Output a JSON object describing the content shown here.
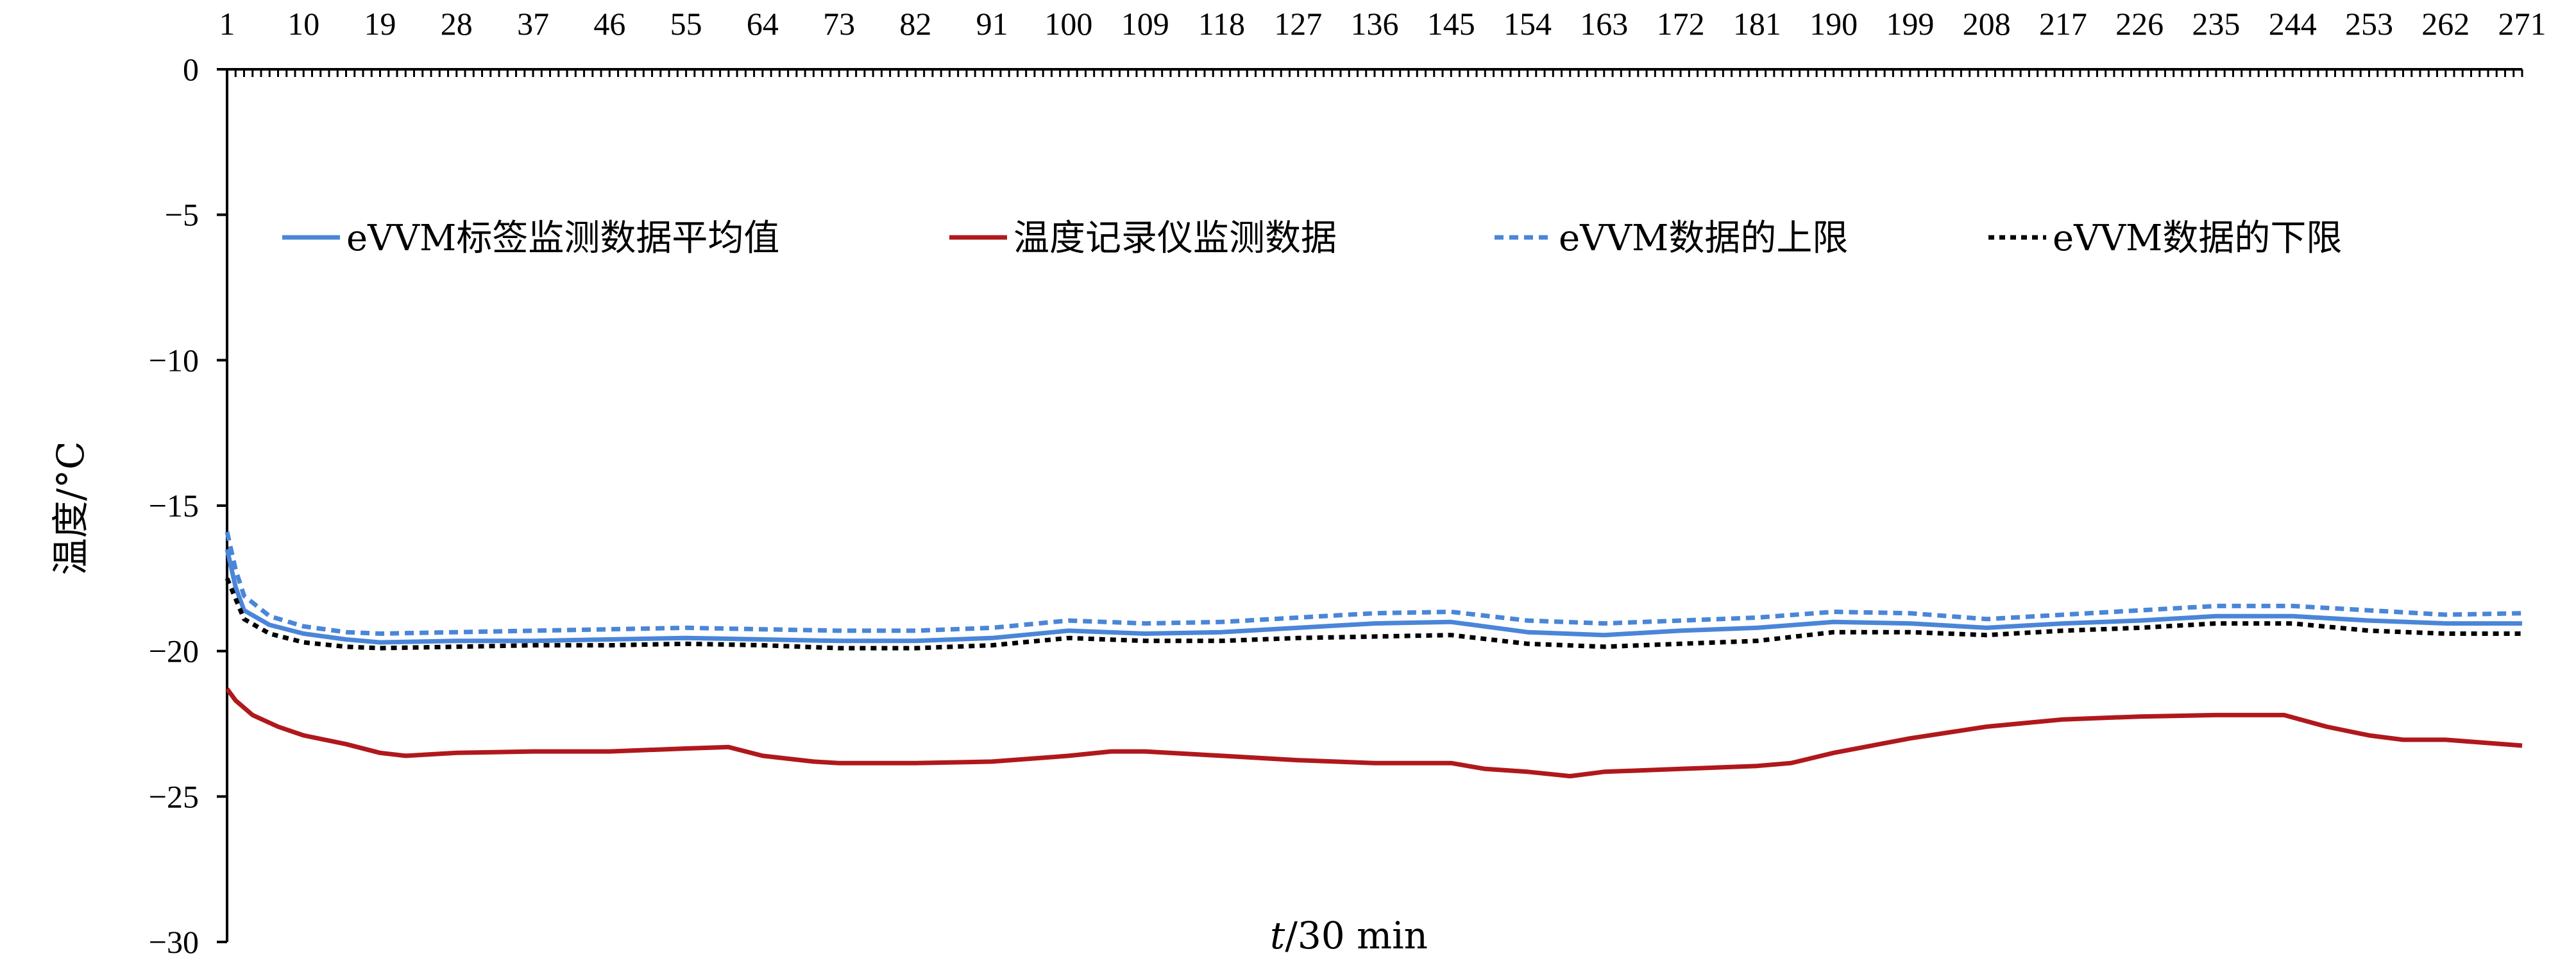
{
  "chart_data": {
    "type": "line",
    "title": "",
    "xlabel_italic": "t",
    "xlabel_rest": "/30 min",
    "ylabel": "温度/°C",
    "x_ticks": [
      1,
      10,
      19,
      28,
      37,
      46,
      55,
      64,
      73,
      82,
      91,
      100,
      109,
      118,
      127,
      136,
      145,
      154,
      163,
      172,
      181,
      190,
      199,
      208,
      217,
      226,
      235,
      244,
      253,
      262,
      271
    ],
    "y_ticks": [
      0,
      -5,
      -10,
      -15,
      -20,
      -25,
      -30
    ],
    "y_tick_labels": [
      "0",
      "−5",
      "−10",
      "−15",
      "−20",
      "−25",
      "−30"
    ],
    "xlim": [
      1,
      271
    ],
    "ylim": [
      -30,
      0
    ],
    "x_axis_position": "top",
    "grid": false,
    "legend_position": "top",
    "series": [
      {
        "name": "eVVM标签监测数据平均值",
        "color": "#4a86d8",
        "style": "solid",
        "points": [
          [
            1,
            -16.5
          ],
          [
            2,
            -17.8
          ],
          [
            3,
            -18.6
          ],
          [
            6,
            -19.1
          ],
          [
            10,
            -19.4
          ],
          [
            15,
            -19.6
          ],
          [
            19,
            -19.7
          ],
          [
            28,
            -19.65
          ],
          [
            37,
            -19.65
          ],
          [
            46,
            -19.6
          ],
          [
            55,
            -19.55
          ],
          [
            64,
            -19.6
          ],
          [
            73,
            -19.65
          ],
          [
            82,
            -19.65
          ],
          [
            91,
            -19.55
          ],
          [
            100,
            -19.3
          ],
          [
            109,
            -19.4
          ],
          [
            118,
            -19.35
          ],
          [
            127,
            -19.2
          ],
          [
            136,
            -19.05
          ],
          [
            145,
            -19.0
          ],
          [
            154,
            -19.35
          ],
          [
            163,
            -19.45
          ],
          [
            172,
            -19.3
          ],
          [
            181,
            -19.2
          ],
          [
            190,
            -19.0
          ],
          [
            199,
            -19.05
          ],
          [
            208,
            -19.2
          ],
          [
            217,
            -19.05
          ],
          [
            226,
            -18.95
          ],
          [
            235,
            -18.8
          ],
          [
            244,
            -18.8
          ],
          [
            253,
            -18.95
          ],
          [
            262,
            -19.05
          ],
          [
            271,
            -19.05
          ]
        ]
      },
      {
        "name": "温度记录仪监测数据",
        "color": "#b0181c",
        "style": "solid",
        "points": [
          [
            1,
            -21.3
          ],
          [
            2,
            -21.7
          ],
          [
            4,
            -22.2
          ],
          [
            7,
            -22.6
          ],
          [
            10,
            -22.9
          ],
          [
            15,
            -23.2
          ],
          [
            19,
            -23.5
          ],
          [
            22,
            -23.6
          ],
          [
            28,
            -23.5
          ],
          [
            37,
            -23.45
          ],
          [
            46,
            -23.45
          ],
          [
            55,
            -23.35
          ],
          [
            60,
            -23.3
          ],
          [
            64,
            -23.6
          ],
          [
            70,
            -23.8
          ],
          [
            73,
            -23.85
          ],
          [
            82,
            -23.85
          ],
          [
            91,
            -23.8
          ],
          [
            100,
            -23.6
          ],
          [
            105,
            -23.45
          ],
          [
            109,
            -23.45
          ],
          [
            118,
            -23.6
          ],
          [
            127,
            -23.75
          ],
          [
            136,
            -23.85
          ],
          [
            145,
            -23.85
          ],
          [
            149,
            -24.05
          ],
          [
            154,
            -24.15
          ],
          [
            159,
            -24.3
          ],
          [
            163,
            -24.15
          ],
          [
            172,
            -24.05
          ],
          [
            181,
            -23.95
          ],
          [
            185,
            -23.85
          ],
          [
            190,
            -23.5
          ],
          [
            199,
            -23.0
          ],
          [
            208,
            -22.6
          ],
          [
            217,
            -22.35
          ],
          [
            226,
            -22.25
          ],
          [
            235,
            -22.2
          ],
          [
            243,
            -22.2
          ],
          [
            248,
            -22.6
          ],
          [
            253,
            -22.9
          ],
          [
            257,
            -23.05
          ],
          [
            262,
            -23.05
          ],
          [
            271,
            -23.25
          ]
        ]
      },
      {
        "name": "eVVM数据的上限",
        "color": "#4a86d8",
        "style": "dashed",
        "points": [
          [
            1,
            -15.9
          ],
          [
            2,
            -17.2
          ],
          [
            3,
            -18.1
          ],
          [
            6,
            -18.8
          ],
          [
            10,
            -19.15
          ],
          [
            15,
            -19.35
          ],
          [
            19,
            -19.4
          ],
          [
            28,
            -19.35
          ],
          [
            37,
            -19.3
          ],
          [
            46,
            -19.25
          ],
          [
            55,
            -19.2
          ],
          [
            64,
            -19.25
          ],
          [
            73,
            -19.3
          ],
          [
            82,
            -19.3
          ],
          [
            91,
            -19.2
          ],
          [
            100,
            -18.95
          ],
          [
            109,
            -19.05
          ],
          [
            118,
            -19.0
          ],
          [
            127,
            -18.85
          ],
          [
            136,
            -18.7
          ],
          [
            145,
            -18.65
          ],
          [
            154,
            -18.95
          ],
          [
            163,
            -19.05
          ],
          [
            172,
            -18.95
          ],
          [
            181,
            -18.85
          ],
          [
            190,
            -18.65
          ],
          [
            199,
            -18.7
          ],
          [
            208,
            -18.9
          ],
          [
            217,
            -18.75
          ],
          [
            226,
            -18.6
          ],
          [
            235,
            -18.45
          ],
          [
            244,
            -18.45
          ],
          [
            253,
            -18.6
          ],
          [
            262,
            -18.75
          ],
          [
            271,
            -18.7
          ]
        ]
      },
      {
        "name": "eVVM数据的下限",
        "color": "#000000",
        "style": "dotted",
        "points": [
          [
            1,
            -17.5
          ],
          [
            2,
            -18.2
          ],
          [
            3,
            -18.9
          ],
          [
            6,
            -19.4
          ],
          [
            10,
            -19.7
          ],
          [
            15,
            -19.85
          ],
          [
            19,
            -19.9
          ],
          [
            28,
            -19.85
          ],
          [
            37,
            -19.8
          ],
          [
            46,
            -19.8
          ],
          [
            55,
            -19.75
          ],
          [
            64,
            -19.8
          ],
          [
            73,
            -19.9
          ],
          [
            82,
            -19.9
          ],
          [
            91,
            -19.8
          ],
          [
            100,
            -19.55
          ],
          [
            109,
            -19.65
          ],
          [
            118,
            -19.65
          ],
          [
            127,
            -19.55
          ],
          [
            136,
            -19.5
          ],
          [
            145,
            -19.45
          ],
          [
            154,
            -19.75
          ],
          [
            163,
            -19.85
          ],
          [
            172,
            -19.75
          ],
          [
            181,
            -19.65
          ],
          [
            190,
            -19.35
          ],
          [
            199,
            -19.35
          ],
          [
            208,
            -19.45
          ],
          [
            217,
            -19.3
          ],
          [
            226,
            -19.2
          ],
          [
            235,
            -19.05
          ],
          [
            244,
            -19.05
          ],
          [
            253,
            -19.3
          ],
          [
            262,
            -19.4
          ],
          [
            271,
            -19.4
          ]
        ]
      }
    ]
  }
}
